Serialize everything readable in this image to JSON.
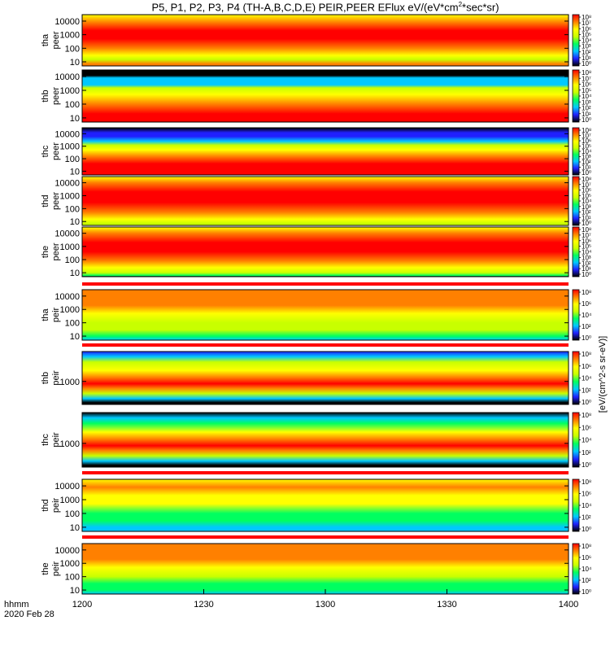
{
  "chart_data": {
    "type": "heatmap",
    "title_prefix": "P5, P1, P2, P3, P4 (TH-A,B,C,D,E) PEIR,PEER EFlux eV/(eV*cm",
    "title_sup": "2",
    "title_suffix": "*sec*sr)",
    "x_axis": {
      "ticks": [
        "1200",
        "1230",
        "1300",
        "1330",
        "1400"
      ],
      "range": [
        "1200",
        "1400"
      ],
      "corner_label": "hhmm",
      "date_label": "2020 Feb 28"
    },
    "colorbar": {
      "scale": "log",
      "palette": [
        "#000000",
        "#2020ff",
        "#00c8ff",
        "#00ff60",
        "#c8ff00",
        "#ffff00",
        "#ff8000",
        "#ff0000"
      ],
      "units": "[eV/(cm^2-s sr-eV)]",
      "tick_labels_peer": [
        "10⁸",
        "10⁷",
        "10⁶",
        "10⁵",
        "10⁴",
        "10³",
        "10²",
        "10¹",
        "10⁰"
      ],
      "tick_labels_peir": [
        "10⁸",
        "10⁶",
        "10⁴",
        "10²",
        "10⁰"
      ]
    },
    "panels": [
      {
        "probe": "tha",
        "product": "peer",
        "ylabel_top": "tha",
        "ylabel_bottom": "peer",
        "y_scale": "log",
        "y_range": [
          5,
          30000
        ],
        "y_ticks": [
          "10000",
          "1000",
          "100",
          "10"
        ],
        "cbar_ticks": "peer",
        "bands": [
          {
            "y": 30000,
            "level": 0.72
          },
          {
            "y": 8000,
            "level": 0.9
          },
          {
            "y": 2000,
            "level": 0.97
          },
          {
            "y": 500,
            "level": 0.95
          },
          {
            "y": 100,
            "level": 0.82
          },
          {
            "y": 30,
            "level": 0.7
          },
          {
            "y": 15,
            "level": 0.55
          },
          {
            "y": 7,
            "level": 0.85
          },
          {
            "y": 5,
            "level": 0.85
          }
        ]
      },
      {
        "probe": "thb",
        "product": "peer",
        "ylabel_top": "thb",
        "ylabel_bottom": "peer",
        "y_scale": "log",
        "y_range": [
          5,
          30000
        ],
        "y_ticks": [
          "10000",
          "1000",
          "100",
          "10"
        ],
        "cbar_ticks": "peer",
        "bands": [
          {
            "y": 30000,
            "level": 0.0
          },
          {
            "y": 12000,
            "level": 0.0
          },
          {
            "y": 8000,
            "level": 0.25
          },
          {
            "y": 2500,
            "level": 0.35
          },
          {
            "y": 1500,
            "level": 0.55
          },
          {
            "y": 500,
            "level": 0.72
          },
          {
            "y": 100,
            "level": 0.9
          },
          {
            "y": 20,
            "level": 0.97
          },
          {
            "y": 5,
            "level": 0.97
          }
        ]
      },
      {
        "probe": "thc",
        "product": "peer",
        "ylabel_top": "thc",
        "ylabel_bottom": "peer",
        "y_scale": "log",
        "y_range": [
          5,
          30000
        ],
        "y_ticks": [
          "10000",
          "1000",
          "100",
          "10"
        ],
        "cbar_ticks": "peer",
        "bands": [
          {
            "y": 30000,
            "level": 0.0
          },
          {
            "y": 12000,
            "level": 0.08
          },
          {
            "y": 6000,
            "level": 0.15
          },
          {
            "y": 2500,
            "level": 0.3
          },
          {
            "y": 1200,
            "level": 0.5
          },
          {
            "y": 500,
            "level": 0.72
          },
          {
            "y": 150,
            "level": 0.85
          },
          {
            "y": 40,
            "level": 0.97
          },
          {
            "y": 5,
            "level": 0.97
          }
        ]
      },
      {
        "probe": "thd",
        "product": "peer",
        "ylabel_top": "thd",
        "ylabel_bottom": "peer",
        "y_scale": "log",
        "y_range": [
          5,
          30000
        ],
        "y_ticks": [
          "10000",
          "1000",
          "100",
          "10"
        ],
        "cbar_ticks": "peer",
        "bands": [
          {
            "y": 30000,
            "level": 0.7
          },
          {
            "y": 10000,
            "level": 0.85
          },
          {
            "y": 2000,
            "level": 0.95
          },
          {
            "y": 300,
            "level": 0.96
          },
          {
            "y": 50,
            "level": 0.9
          },
          {
            "y": 15,
            "level": 0.78
          },
          {
            "y": 7,
            "level": 0.62
          },
          {
            "y": 5,
            "level": 0.55
          }
        ]
      },
      {
        "probe": "the",
        "product": "peer",
        "ylabel_top": "the",
        "ylabel_bottom": "peer",
        "y_scale": "log",
        "y_range": [
          5,
          30000
        ],
        "y_ticks": [
          "10000",
          "1000",
          "100",
          "10"
        ],
        "cbar_ticks": "peer",
        "bands": [
          {
            "y": 30000,
            "level": 0.7
          },
          {
            "y": 10000,
            "level": 0.85
          },
          {
            "y": 2000,
            "level": 0.96
          },
          {
            "y": 400,
            "level": 0.94
          },
          {
            "y": 80,
            "level": 0.85
          },
          {
            "y": 25,
            "level": 0.7
          },
          {
            "y": 10,
            "level": 0.5
          },
          {
            "y": 6,
            "level": 0.4
          },
          {
            "y": 5,
            "level": 0.0
          }
        ]
      },
      {
        "probe": "tha",
        "product": "peir",
        "ylabel_top": "tha",
        "ylabel_bottom": "peir",
        "y_scale": "log",
        "y_range": [
          5,
          30000
        ],
        "y_ticks": [
          "10000",
          "1000",
          "100",
          "10"
        ],
        "cbar_ticks": "peir",
        "bands": [
          {
            "y": 30000,
            "level": 0.82
          },
          {
            "y": 8000,
            "level": 0.85
          },
          {
            "y": 2000,
            "level": 0.8
          },
          {
            "y": 500,
            "level": 0.72
          },
          {
            "y": 100,
            "level": 0.62
          },
          {
            "y": 30,
            "level": 0.5
          },
          {
            "y": 10,
            "level": 0.4
          },
          {
            "y": 5,
            "level": 0.35
          }
        ]
      },
      {
        "probe": "thb",
        "product": "peir",
        "ylabel_top": "thb",
        "ylabel_bottom": "peir",
        "y_scale": "log",
        "y_range": [
          100,
          20000
        ],
        "y_ticks": [
          "1000"
        ],
        "cbar_ticks": "peir",
        "bands": [
          {
            "y": 20000,
            "level": 0.1
          },
          {
            "y": 12000,
            "level": 0.3
          },
          {
            "y": 7000,
            "level": 0.5
          },
          {
            "y": 3000,
            "level": 0.7
          },
          {
            "y": 1500,
            "level": 0.85
          },
          {
            "y": 800,
            "level": 0.97
          },
          {
            "y": 500,
            "level": 0.85
          },
          {
            "y": 300,
            "level": 0.6
          },
          {
            "y": 180,
            "level": 0.3
          },
          {
            "y": 120,
            "level": 0.05
          },
          {
            "y": 100,
            "level": 0.0
          }
        ]
      },
      {
        "probe": "thc",
        "product": "peir",
        "ylabel_top": "thc",
        "ylabel_bottom": "peir",
        "y_scale": "log",
        "y_range": [
          100,
          20000
        ],
        "y_ticks": [
          "1000"
        ],
        "cbar_ticks": "peir",
        "bands": [
          {
            "y": 20000,
            "level": 0.05
          },
          {
            "y": 12000,
            "level": 0.25
          },
          {
            "y": 7000,
            "level": 0.45
          },
          {
            "y": 3000,
            "level": 0.65
          },
          {
            "y": 1500,
            "level": 0.82
          },
          {
            "y": 800,
            "level": 0.97
          },
          {
            "y": 500,
            "level": 0.82
          },
          {
            "y": 300,
            "level": 0.55
          },
          {
            "y": 180,
            "level": 0.28
          },
          {
            "y": 120,
            "level": 0.05
          },
          {
            "y": 100,
            "level": 0.0
          }
        ]
      },
      {
        "probe": "thd",
        "product": "peir",
        "ylabel_top": "thd",
        "ylabel_bottom": "peir",
        "y_scale": "log",
        "y_range": [
          5,
          30000
        ],
        "y_ticks": [
          "10000",
          "1000",
          "100",
          "10"
        ],
        "cbar_ticks": "peir",
        "bands": [
          {
            "y": 30000,
            "level": 0.75
          },
          {
            "y": 8000,
            "level": 0.82
          },
          {
            "y": 2000,
            "level": 0.78
          },
          {
            "y": 500,
            "level": 0.65
          },
          {
            "y": 100,
            "level": 0.48
          },
          {
            "y": 30,
            "level": 0.38
          },
          {
            "y": 10,
            "level": 0.32
          },
          {
            "y": 5,
            "level": 0.3
          }
        ]
      },
      {
        "probe": "the",
        "product": "peir",
        "ylabel_top": "the",
        "ylabel_bottom": "peir",
        "y_scale": "log",
        "y_range": [
          5,
          30000
        ],
        "y_ticks": [
          "10000",
          "1000",
          "100",
          "10"
        ],
        "cbar_ticks": "peir",
        "bands": [
          {
            "y": 30000,
            "level": 0.8
          },
          {
            "y": 8000,
            "level": 0.85
          },
          {
            "y": 2000,
            "level": 0.8
          },
          {
            "y": 500,
            "level": 0.7
          },
          {
            "y": 100,
            "level": 0.56
          },
          {
            "y": 30,
            "level": 0.45
          },
          {
            "y": 10,
            "level": 0.38
          },
          {
            "y": 5,
            "level": 0.35
          }
        ]
      }
    ]
  }
}
